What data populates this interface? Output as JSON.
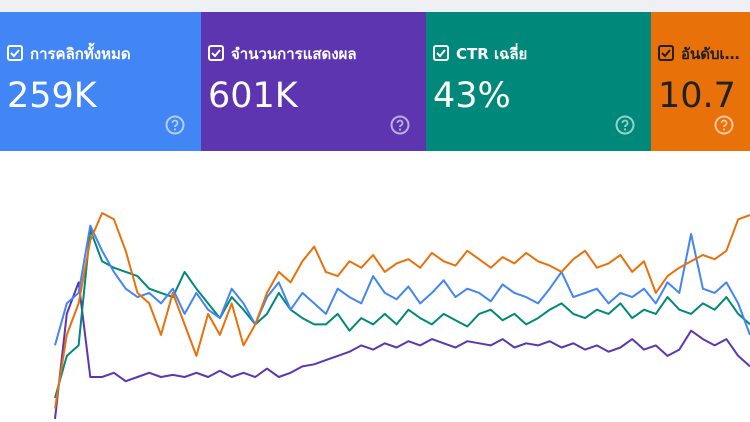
{
  "cards": [
    {
      "label": "การคลิกทั้งหมด",
      "value": "259K",
      "color": "#4285f4",
      "text_color": "#ffffff"
    },
    {
      "label": "จำนวนการแสดงผล",
      "value": "601K",
      "color": "#5e35b1",
      "text_color": "#ffffff"
    },
    {
      "label": "CTR เฉลี่ย",
      "value": "43%",
      "color": "#00897b",
      "text_color": "#ffffff"
    },
    {
      "label": "อันดับเฉลี่ย",
      "value": "10.7",
      "color": "#e8710a",
      "text_color": "#202124"
    }
  ],
  "chart_data": {
    "type": "line",
    "series": [
      {
        "color": "#5e35b1",
        "values": [
          0,
          50,
          65,
          20,
          20,
          22,
          18,
          20,
          22,
          20,
          21,
          20,
          22,
          20,
          23,
          20,
          22,
          20,
          24,
          20,
          22,
          25,
          26,
          28,
          30,
          32,
          35,
          33,
          36,
          34,
          37,
          35,
          38,
          36,
          34,
          37,
          36,
          35,
          38,
          34,
          36,
          35,
          37,
          34,
          36,
          33,
          35,
          32,
          34,
          38,
          33,
          35,
          30,
          33,
          42,
          38,
          35,
          38,
          30,
          25
        ]
      },
      {
        "color": "#00897b",
        "values": [
          10,
          30,
          35,
          90,
          75,
          72,
          70,
          68,
          62,
          60,
          58,
          70,
          62,
          55,
          48,
          58,
          52,
          45,
          50,
          60,
          52,
          48,
          45,
          45,
          50,
          42,
          48,
          45,
          50,
          45,
          52,
          48,
          45,
          50,
          47,
          44,
          50,
          52,
          47,
          50,
          45,
          48,
          52,
          55,
          50,
          48,
          52,
          50,
          55,
          48,
          52,
          50,
          58,
          52,
          50,
          55,
          52,
          58,
          50,
          45
        ]
      },
      {
        "color": "#4285f4",
        "values": [
          35,
          55,
          60,
          92,
          80,
          70,
          62,
          58,
          60,
          55,
          62,
          50,
          60,
          52,
          48,
          62,
          55,
          45,
          58,
          65,
          52,
          60,
          55,
          50,
          62,
          58,
          55,
          68,
          60,
          57,
          63,
          55,
          60,
          66,
          58,
          62,
          60,
          56,
          64,
          60,
          58,
          55,
          62,
          70,
          58,
          60,
          62,
          55,
          60,
          58,
          62,
          55,
          65,
          60,
          88,
          62,
          60,
          65,
          55,
          40
        ]
      },
      {
        "color": "#e8710a",
        "values": [
          5,
          40,
          55,
          85,
          98,
          95,
          80,
          60,
          55,
          40,
          60,
          45,
          30,
          50,
          40,
          55,
          35,
          45,
          60,
          70,
          65,
          75,
          82,
          70,
          68,
          75,
          72,
          78,
          70,
          74,
          76,
          72,
          79,
          75,
          73,
          80,
          76,
          72,
          77,
          74,
          79,
          75,
          73,
          70,
          76,
          80,
          72,
          74,
          78,
          70,
          75,
          60,
          68,
          72,
          75,
          78,
          76,
          80,
          95,
          97
        ]
      }
    ]
  }
}
